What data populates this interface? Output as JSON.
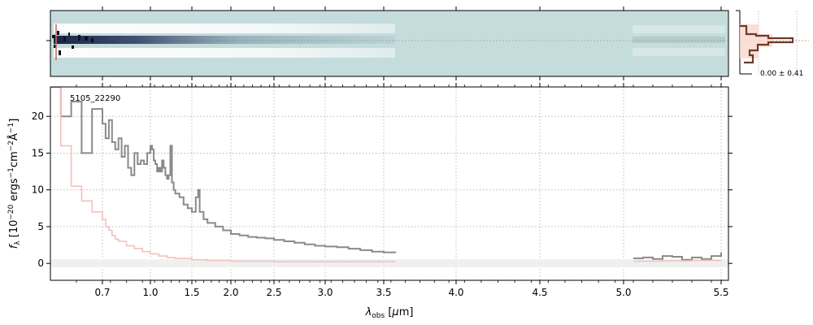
{
  "figure": {
    "object_label": "5105_22290",
    "xlabel": "λobs [μm]",
    "ylabel": "fλ [10⁻²⁰ ergs⁻¹cm⁻²Å⁻¹]",
    "hist_label": "0.00 ± 0.41"
  },
  "colors": {
    "spectrum": "#8a8a8a",
    "error": "#f4c0bd",
    "spectrum_2d_bg": "#c5dcdc",
    "hist_line": "#6b3b2c",
    "hist_fill": "#f9d9cf",
    "zero_band": "#eeeeee",
    "grid": "#b0b0b0"
  },
  "chart_data": {
    "type": "line",
    "x_scale": "custom (stretched wavelength axis)",
    "xlim": [
      0.6,
      5.52
    ],
    "ylim": [
      -2.3,
      24.0
    ],
    "x_ticks": [
      0.7,
      1.0,
      1.5,
      2.0,
      2.5,
      3.0,
      3.5,
      4.0,
      4.5,
      5.0,
      5.5
    ],
    "x_tick_labels": [
      "0.7",
      "1.0",
      "1.5",
      "2.0",
      "2.5",
      "3.0",
      "3.5",
      "4.0",
      "4.5",
      "5.0",
      "5.5"
    ],
    "y_ticks": [
      0,
      5,
      10,
      15,
      20
    ],
    "y_tick_labels": [
      "0",
      "5",
      "10",
      "15",
      "20"
    ],
    "grid": true,
    "series": [
      {
        "role": "flux",
        "x": [
          0.6,
          0.62,
          0.64,
          0.66,
          0.68,
          0.7,
          0.72,
          0.74,
          0.76,
          0.78,
          0.8,
          0.82,
          0.84,
          0.86,
          0.88,
          0.9,
          0.92,
          0.94,
          0.96,
          0.98,
          1.0,
          1.02,
          1.04,
          1.06,
          1.08,
          1.1,
          1.12,
          1.14,
          1.16,
          1.18,
          1.2,
          1.22,
          1.24,
          1.26,
          1.28,
          1.3,
          1.35,
          1.4,
          1.45,
          1.5,
          1.55,
          1.58,
          1.6,
          1.65,
          1.7,
          1.8,
          1.9,
          2.0,
          2.1,
          2.2,
          2.3,
          2.4,
          2.5,
          2.6,
          2.7,
          2.8,
          2.9,
          3.0,
          3.1,
          3.2,
          3.3,
          3.4,
          3.5,
          3.58
        ],
        "y": [
          24.0,
          20.0,
          22.0,
          15.0,
          21.0,
          19.0,
          17.0,
          19.5,
          16.5,
          15.5,
          17.0,
          14.5,
          16.0,
          13.0,
          12.0,
          15.0,
          13.5,
          14.0,
          13.5,
          15.0,
          16.0,
          15.5,
          14.0,
          13.5,
          12.5,
          13.0,
          12.5,
          14.0,
          13.0,
          12.0,
          11.5,
          12.0,
          16.0,
          11.0,
          10.0,
          9.5,
          9.0,
          8.0,
          7.5,
          7.0,
          9.0,
          10.0,
          7.0,
          6.0,
          5.5,
          5.0,
          4.5,
          4.0,
          3.8,
          3.6,
          3.5,
          3.4,
          3.2,
          3.0,
          2.8,
          2.6,
          2.4,
          2.3,
          2.2,
          2.0,
          1.8,
          1.6,
          1.5,
          1.4
        ]
      },
      {
        "role": "flux",
        "x": [
          5.05,
          5.1,
          5.15,
          5.2,
          5.25,
          5.3,
          5.35,
          5.4,
          5.45,
          5.5
        ],
        "y": [
          0.7,
          0.8,
          0.6,
          1.0,
          0.9,
          0.5,
          0.8,
          0.6,
          1.0,
          1.5
        ]
      },
      {
        "role": "uncertainty",
        "x": [
          0.6,
          0.62,
          0.64,
          0.66,
          0.68,
          0.7,
          0.72,
          0.74,
          0.76,
          0.78,
          0.8,
          0.85,
          0.9,
          0.95,
          1.0,
          1.1,
          1.2,
          1.3,
          1.5,
          1.7,
          2.0,
          2.5,
          3.0,
          3.58
        ],
        "y": [
          24.0,
          16.0,
          10.5,
          8.5,
          7.0,
          6.0,
          5.0,
          4.5,
          3.8,
          3.3,
          3.0,
          2.4,
          2.0,
          1.6,
          1.3,
          1.0,
          0.8,
          0.7,
          0.5,
          0.4,
          0.3,
          0.25,
          0.25,
          0.25
        ]
      },
      {
        "role": "uncertainty",
        "x": [
          5.05,
          5.2,
          5.35,
          5.5
        ],
        "y": [
          0.3,
          0.35,
          0.4,
          0.5
        ]
      }
    ]
  }
}
